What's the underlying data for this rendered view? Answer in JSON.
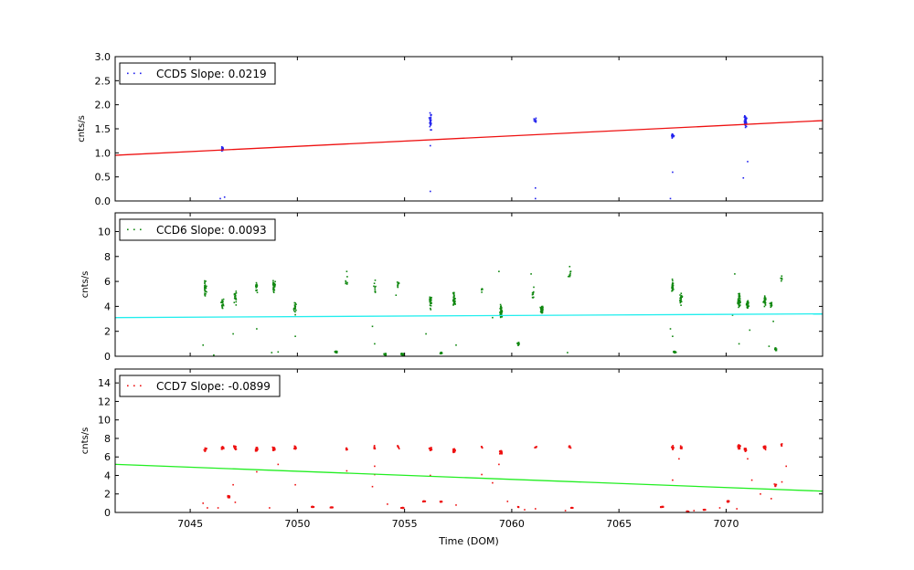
{
  "chart_data": [
    {
      "type": "scatter",
      "legend": "CCD5 Slope: 0.0219",
      "legend_position": "top-left",
      "ylabel": "cnts/s",
      "ylim": [
        0,
        3.0
      ],
      "yticks": [
        "0.0",
        "0.5",
        "1.0",
        "1.5",
        "2.0",
        "2.5",
        "3.0"
      ],
      "point_color": "#2222ee",
      "fit_color": "#ee1111",
      "fit": {
        "x": [
          7041.5,
          7074.5
        ],
        "y": [
          0.95,
          1.67
        ]
      },
      "clusters": [
        {
          "x": 7046.5,
          "y": 1.08,
          "spread": 0.06,
          "n": 30
        },
        {
          "x": 7056.2,
          "y": 1.65,
          "spread": 0.25,
          "n": 25
        },
        {
          "x": 7061.1,
          "y": 1.68,
          "spread": 0.06,
          "n": 10
        },
        {
          "x": 7067.5,
          "y": 1.36,
          "spread": 0.08,
          "n": 14
        },
        {
          "x": 7070.9,
          "y": 1.65,
          "spread": 0.15,
          "n": 45
        }
      ],
      "outliers": [
        [
          7046.4,
          0.05
        ],
        [
          7046.6,
          0.08
        ],
        [
          7056.2,
          0.2
        ],
        [
          7056.2,
          1.15
        ],
        [
          7061.1,
          0.27
        ],
        [
          7061.1,
          0.05
        ],
        [
          7067.5,
          0.6
        ],
        [
          7067.4,
          0.05
        ],
        [
          7070.8,
          0.48
        ],
        [
          7071.0,
          0.82
        ]
      ]
    },
    {
      "type": "scatter",
      "legend": "CCD6 Slope: 0.0093",
      "legend_position": "top-left",
      "ylabel": "cnts/s",
      "ylim": [
        0,
        11.5
      ],
      "yticks": [
        "0",
        "2",
        "4",
        "6",
        "8",
        "10"
      ],
      "point_color": "#118811",
      "fit_color": "#22eeee",
      "fit": {
        "x": [
          7041.5,
          7074.5
        ],
        "y": [
          3.1,
          3.4
        ]
      },
      "clusters": [
        {
          "x": 7045.7,
          "y": 5.6,
          "spread": 0.8,
          "n": 25
        },
        {
          "x": 7046.5,
          "y": 4.2,
          "spread": 0.6,
          "n": 25
        },
        {
          "x": 7047.1,
          "y": 4.8,
          "spread": 0.8,
          "n": 18
        },
        {
          "x": 7048.1,
          "y": 5.6,
          "spread": 0.6,
          "n": 18
        },
        {
          "x": 7048.9,
          "y": 5.6,
          "spread": 0.8,
          "n": 35
        },
        {
          "x": 7049.9,
          "y": 3.9,
          "spread": 0.8,
          "n": 20
        },
        {
          "x": 7051.8,
          "y": 0.35,
          "spread": 0.1,
          "n": 30
        },
        {
          "x": 7052.3,
          "y": 6.0,
          "spread": 0.6,
          "n": 6
        },
        {
          "x": 7053.6,
          "y": 5.5,
          "spread": 0.8,
          "n": 10
        },
        {
          "x": 7054.1,
          "y": 0.15,
          "spread": 0.1,
          "n": 30
        },
        {
          "x": 7054.9,
          "y": 0.15,
          "spread": 0.1,
          "n": 35
        },
        {
          "x": 7054.7,
          "y": 5.7,
          "spread": 0.4,
          "n": 8
        },
        {
          "x": 7056.2,
          "y": 4.3,
          "spread": 0.9,
          "n": 25
        },
        {
          "x": 7056.7,
          "y": 0.25,
          "spread": 0.1,
          "n": 15
        },
        {
          "x": 7057.3,
          "y": 4.5,
          "spread": 0.8,
          "n": 35
        },
        {
          "x": 7058.6,
          "y": 5.3,
          "spread": 0.3,
          "n": 6
        },
        {
          "x": 7059.5,
          "y": 3.6,
          "spread": 0.8,
          "n": 50
        },
        {
          "x": 7060.3,
          "y": 1.0,
          "spread": 0.2,
          "n": 12
        },
        {
          "x": 7061.0,
          "y": 5.0,
          "spread": 0.8,
          "n": 10
        },
        {
          "x": 7061.4,
          "y": 3.7,
          "spread": 0.4,
          "n": 45
        },
        {
          "x": 7062.7,
          "y": 6.6,
          "spread": 0.5,
          "n": 8
        },
        {
          "x": 7067.5,
          "y": 5.5,
          "spread": 0.8,
          "n": 25
        },
        {
          "x": 7067.6,
          "y": 0.35,
          "spread": 0.1,
          "n": 20
        },
        {
          "x": 7067.9,
          "y": 4.6,
          "spread": 0.6,
          "n": 20
        },
        {
          "x": 7070.6,
          "y": 4.5,
          "spread": 0.8,
          "n": 45
        },
        {
          "x": 7071.0,
          "y": 4.2,
          "spread": 0.5,
          "n": 25
        },
        {
          "x": 7071.8,
          "y": 4.5,
          "spread": 0.6,
          "n": 30
        },
        {
          "x": 7072.1,
          "y": 4.1,
          "spread": 0.4,
          "n": 12
        },
        {
          "x": 7072.3,
          "y": 0.6,
          "spread": 0.3,
          "n": 10
        },
        {
          "x": 7072.6,
          "y": 6.2,
          "spread": 0.4,
          "n": 6
        }
      ],
      "outliers": [
        [
          7045.6,
          0.9
        ],
        [
          7046.1,
          0.1
        ],
        [
          7047.0,
          1.8
        ],
        [
          7048.1,
          2.2
        ],
        [
          7048.8,
          0.3
        ],
        [
          7049.1,
          0.35
        ],
        [
          7049.9,
          1.6
        ],
        [
          7052.3,
          6.8
        ],
        [
          7053.5,
          2.4
        ],
        [
          7053.6,
          1.0
        ],
        [
          7054.6,
          4.9
        ],
        [
          7056.0,
          1.8
        ],
        [
          7057.4,
          0.9
        ],
        [
          7059.1,
          3.1
        ],
        [
          7059.4,
          6.8
        ],
        [
          7060.9,
          6.6
        ],
        [
          7062.7,
          7.2
        ],
        [
          7062.6,
          0.3
        ],
        [
          7067.4,
          2.2
        ],
        [
          7067.5,
          1.6
        ],
        [
          7070.3,
          3.3
        ],
        [
          7070.4,
          6.6
        ],
        [
          7070.6,
          1.0
        ],
        [
          7071.1,
          2.1
        ],
        [
          7072.0,
          0.8
        ],
        [
          7072.2,
          2.8
        ]
      ]
    },
    {
      "type": "scatter",
      "legend": "CCD7 Slope: -0.0899",
      "legend_position": "top-left",
      "ylabel": "cnts/s",
      "xlabel": "Time (DOM)",
      "ylim": [
        0,
        15.5
      ],
      "xlim": [
        7041.5,
        7074.5
      ],
      "xticks": [
        7045,
        7050,
        7055,
        7060,
        7065,
        7070
      ],
      "xtick_labels": [
        "7045",
        "7050",
        "7055",
        "7060",
        "7065",
        "7070"
      ],
      "yticks": [
        "0",
        "2",
        "4",
        "6",
        "8",
        "10",
        "12",
        "14"
      ],
      "point_color": "#ee1111",
      "fit_color": "#22ee22",
      "fit": {
        "x": [
          7041.5,
          7074.5
        ],
        "y": [
          5.2,
          2.3
        ]
      },
      "clusters": [
        {
          "x": 7045.7,
          "y": 6.8,
          "spread": 0.3,
          "n": 15
        },
        {
          "x": 7046.5,
          "y": 7.0,
          "spread": 0.3,
          "n": 20
        },
        {
          "x": 7046.8,
          "y": 1.7,
          "spread": 0.15,
          "n": 35
        },
        {
          "x": 7047.1,
          "y": 7.0,
          "spread": 0.3,
          "n": 18
        },
        {
          "x": 7048.1,
          "y": 6.8,
          "spread": 0.3,
          "n": 30
        },
        {
          "x": 7048.9,
          "y": 6.9,
          "spread": 0.3,
          "n": 30
        },
        {
          "x": 7049.9,
          "y": 7.0,
          "spread": 0.3,
          "n": 20
        },
        {
          "x": 7050.7,
          "y": 0.6,
          "spread": 0.05,
          "n": 25
        },
        {
          "x": 7051.6,
          "y": 0.55,
          "spread": 0.05,
          "n": 30
        },
        {
          "x": 7052.3,
          "y": 6.9,
          "spread": 0.3,
          "n": 6
        },
        {
          "x": 7053.6,
          "y": 7.0,
          "spread": 0.3,
          "n": 12
        },
        {
          "x": 7054.7,
          "y": 7.0,
          "spread": 0.3,
          "n": 6
        },
        {
          "x": 7054.9,
          "y": 0.5,
          "spread": 0.05,
          "n": 40
        },
        {
          "x": 7055.9,
          "y": 1.2,
          "spread": 0.05,
          "n": 35
        },
        {
          "x": 7056.2,
          "y": 6.9,
          "spread": 0.3,
          "n": 20
        },
        {
          "x": 7056.7,
          "y": 1.2,
          "spread": 0.1,
          "n": 15
        },
        {
          "x": 7057.3,
          "y": 6.7,
          "spread": 0.3,
          "n": 35
        },
        {
          "x": 7058.6,
          "y": 7.0,
          "spread": 0.3,
          "n": 6
        },
        {
          "x": 7059.5,
          "y": 6.5,
          "spread": 0.3,
          "n": 50
        },
        {
          "x": 7060.3,
          "y": 0.6,
          "spread": 0.1,
          "n": 8
        },
        {
          "x": 7061.1,
          "y": 7.0,
          "spread": 0.2,
          "n": 6
        },
        {
          "x": 7062.8,
          "y": 0.5,
          "spread": 0.05,
          "n": 20
        },
        {
          "x": 7062.7,
          "y": 7.1,
          "spread": 0.2,
          "n": 8
        },
        {
          "x": 7067.0,
          "y": 0.6,
          "spread": 0.05,
          "n": 50
        },
        {
          "x": 7067.5,
          "y": 7.0,
          "spread": 0.3,
          "n": 20
        },
        {
          "x": 7067.9,
          "y": 7.0,
          "spread": 0.3,
          "n": 15
        },
        {
          "x": 7068.2,
          "y": 0.1,
          "spread": 0.05,
          "n": 20
        },
        {
          "x": 7069.0,
          "y": 0.3,
          "spread": 0.05,
          "n": 12
        },
        {
          "x": 7070.1,
          "y": 1.2,
          "spread": 0.1,
          "n": 20
        },
        {
          "x": 7070.6,
          "y": 7.1,
          "spread": 0.3,
          "n": 30
        },
        {
          "x": 7070.9,
          "y": 6.8,
          "spread": 0.3,
          "n": 25
        },
        {
          "x": 7071.8,
          "y": 7.0,
          "spread": 0.3,
          "n": 25
        },
        {
          "x": 7072.3,
          "y": 2.9,
          "spread": 0.3,
          "n": 8
        },
        {
          "x": 7072.6,
          "y": 7.3,
          "spread": 0.3,
          "n": 6
        }
      ],
      "outliers": [
        [
          7045.6,
          1.0
        ],
        [
          7045.8,
          0.5
        ],
        [
          7046.3,
          0.5
        ],
        [
          7047.1,
          1.1
        ],
        [
          7047.0,
          3.0
        ],
        [
          7048.1,
          4.4
        ],
        [
          7048.7,
          0.5
        ],
        [
          7049.1,
          5.2
        ],
        [
          7049.9,
          3.0
        ],
        [
          7052.3,
          4.5
        ],
        [
          7053.5,
          2.8
        ],
        [
          7053.6,
          4.1
        ],
        [
          7053.6,
          5.0
        ],
        [
          7054.2,
          0.9
        ],
        [
          7056.2,
          4.0
        ],
        [
          7057.4,
          0.8
        ],
        [
          7058.6,
          4.1
        ],
        [
          7059.4,
          5.2
        ],
        [
          7059.1,
          3.2
        ],
        [
          7059.8,
          1.2
        ],
        [
          7060.6,
          0.3
        ],
        [
          7061.1,
          0.4
        ],
        [
          7062.5,
          0.2
        ],
        [
          7067.5,
          3.5
        ],
        [
          7067.8,
          5.8
        ],
        [
          7068.5,
          0.2
        ],
        [
          7069.7,
          0.5
        ],
        [
          7070.5,
          0.4
        ],
        [
          7071.0,
          5.8
        ],
        [
          7071.2,
          3.5
        ],
        [
          7071.6,
          2.0
        ],
        [
          7072.1,
          1.5
        ],
        [
          7072.6,
          3.3
        ],
        [
          7072.8,
          5.0
        ]
      ]
    }
  ]
}
